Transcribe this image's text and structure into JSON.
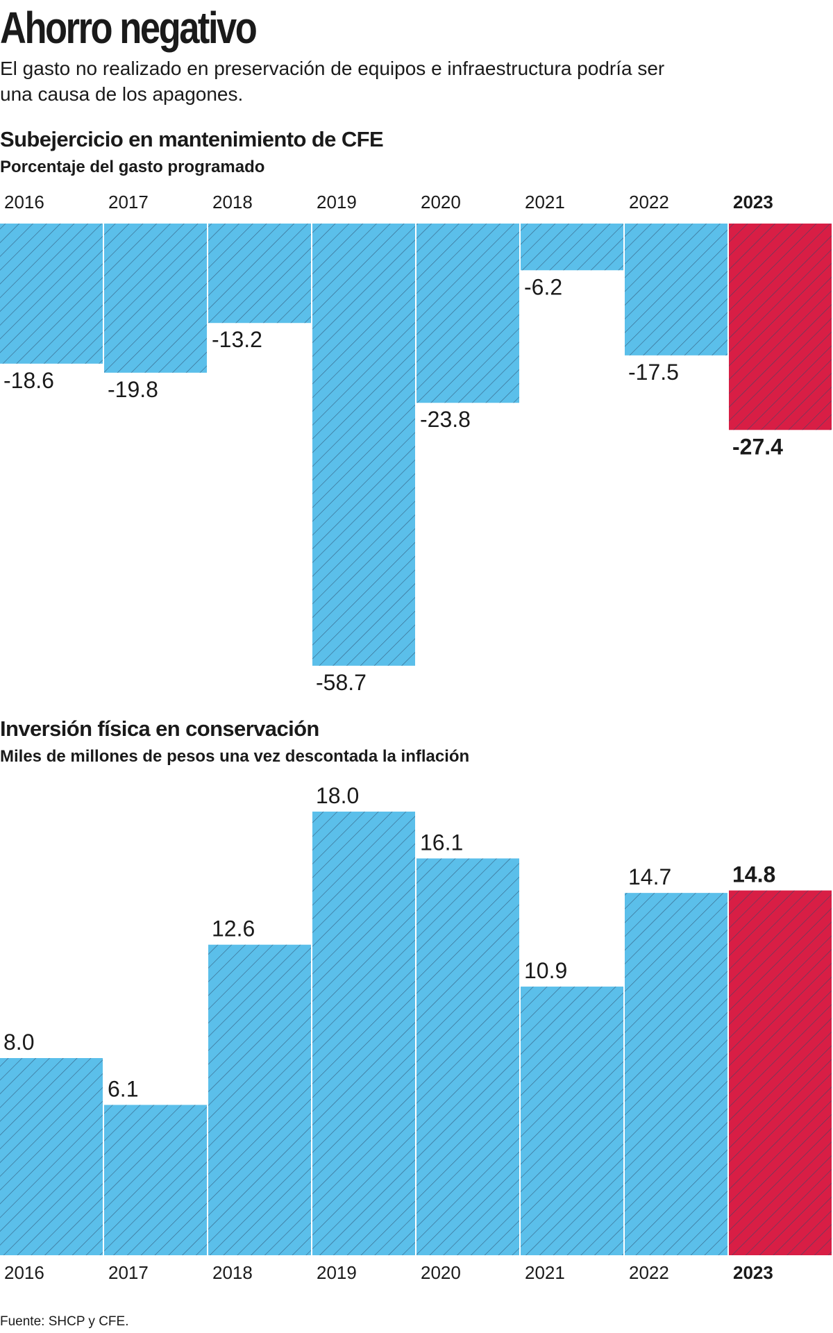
{
  "title": "Ahorro negativo",
  "subtitle": "El gasto no realizado en preservación de equipos e infraestructura podría ser una causa de los apagones.",
  "source": "Fuente: SHCP y CFE.",
  "colors": {
    "bar": "#5bbfea",
    "highlight": "#d81e45",
    "hatch": "#2a4a6a",
    "text": "#1a1a1a"
  },
  "chart_data": [
    {
      "type": "bar",
      "title": "Subejercicio en mantenimiento de CFE",
      "subtitle": "Porcentaje del gasto programado",
      "categories": [
        "2016",
        "2017",
        "2018",
        "2019",
        "2020",
        "2021",
        "2022",
        "2023"
      ],
      "values": [
        -18.6,
        -19.8,
        -13.2,
        -58.7,
        -23.8,
        -6.2,
        -17.5,
        -27.4
      ],
      "labels": [
        "-18.6",
        "-19.8",
        "-13.2",
        "-58.7",
        "-23.8",
        "-6.2",
        "-17.5",
        "-27.4"
      ],
      "highlight": "2023",
      "ylim": [
        -60,
        0
      ],
      "axis_position": "top",
      "grid": false
    },
    {
      "type": "bar",
      "title": "Inversión física en conservación",
      "subtitle": "Miles de millones de pesos una vez descontada la inflación",
      "categories": [
        "2016",
        "2017",
        "2018",
        "2019",
        "2020",
        "2021",
        "2022",
        "2023"
      ],
      "values": [
        8.0,
        6.1,
        12.6,
        18.0,
        16.1,
        10.9,
        14.7,
        14.8
      ],
      "labels": [
        "8.0",
        "6.1",
        "12.6",
        "18.0",
        "16.1",
        "10.9",
        "14.7",
        "14.8"
      ],
      "highlight": "2023",
      "ylim": [
        0,
        18
      ],
      "axis_position": "bottom",
      "grid": false
    }
  ]
}
